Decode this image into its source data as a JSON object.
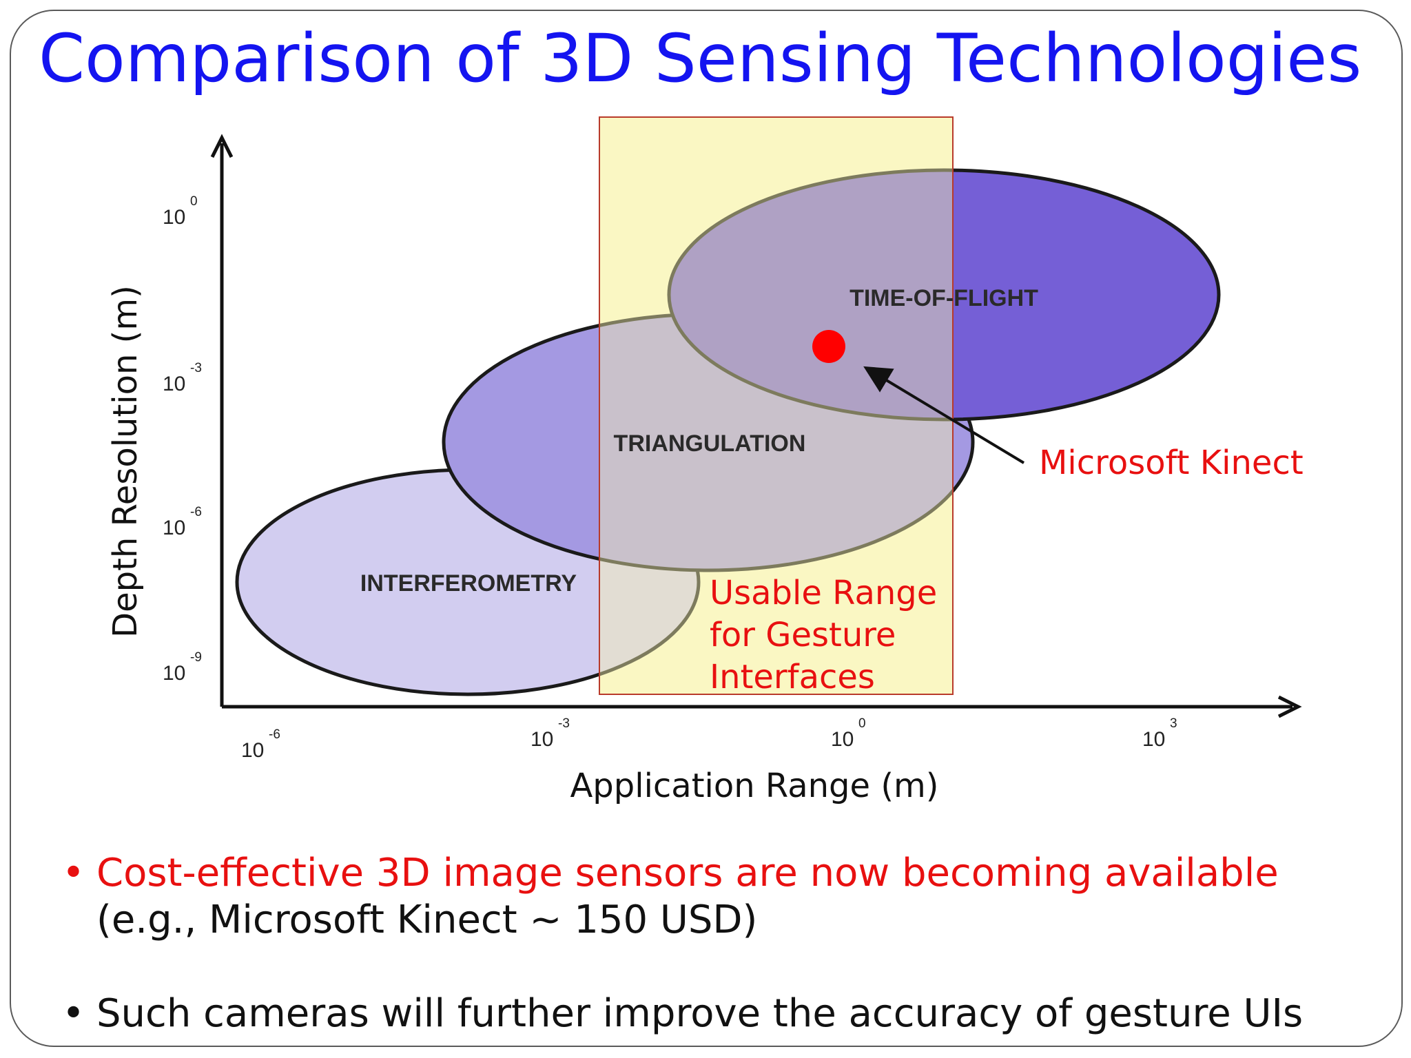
{
  "title": "Comparison of 3D Sensing Technologies",
  "chart_data": {
    "type": "diagram",
    "x_axis": {
      "label": "Application Range (m)",
      "scale": "log",
      "ticks": [
        {
          "base": "10",
          "exp": "-6"
        },
        {
          "base": "10",
          "exp": "-3"
        },
        {
          "base": "10",
          "exp": "0"
        },
        {
          "base": "10",
          "exp": "3"
        }
      ]
    },
    "y_axis": {
      "label": "Depth Resolution (m)",
      "scale": "log",
      "ticks": [
        {
          "base": "10",
          "exp": "0"
        },
        {
          "base": "10",
          "exp": "-3"
        },
        {
          "base": "10",
          "exp": "-6"
        },
        {
          "base": "10",
          "exp": "-9"
        }
      ]
    },
    "regions": [
      {
        "name": "INTERFEROMETRY",
        "color": "#d2cdf0"
      },
      {
        "name": "TRIANGULATION",
        "color": "#a499e2"
      },
      {
        "name": "TIME-OF-FLIGHT",
        "color": "#755fd6"
      }
    ],
    "highlight_box": {
      "label_lines": [
        "Usable Range",
        "for Gesture",
        "Interfaces"
      ],
      "fill": "#fdfbd4",
      "stroke": "#b83a2a"
    },
    "marker": {
      "label": "Microsoft Kinect",
      "color": "#ff0000"
    }
  },
  "bullets": [
    {
      "text": "Cost-effective 3D image sensors are now becoming available",
      "sub": "(e.g., Microsoft Kinect ~ 150 USD)"
    },
    {
      "text": "Such cameras will further improve the accuracy of gesture UIs"
    }
  ]
}
